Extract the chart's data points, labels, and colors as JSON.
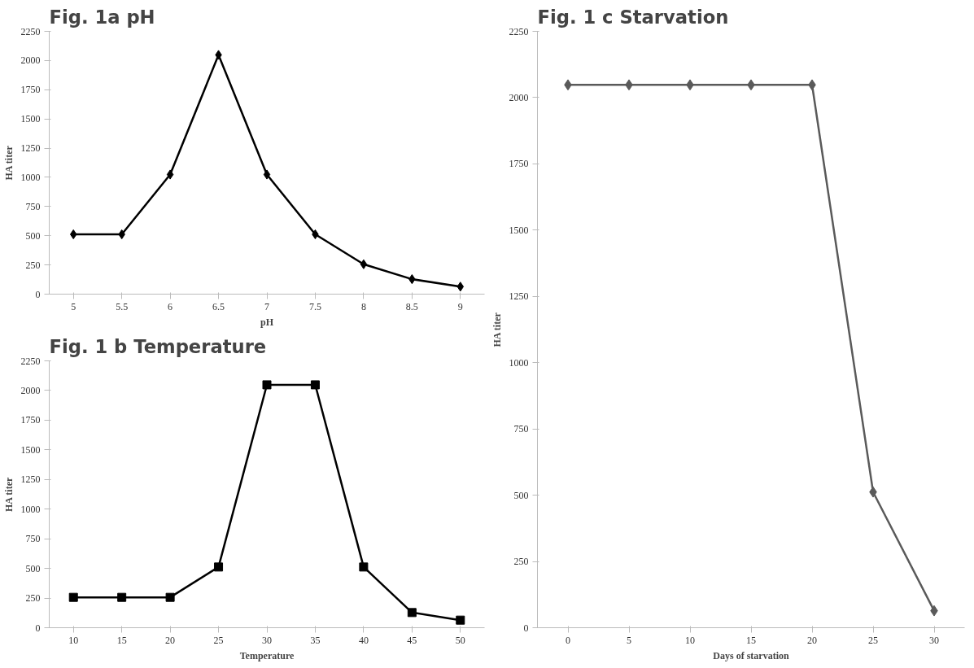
{
  "chart_data": [
    {
      "type": "line",
      "title": "Fig. 1a pH",
      "xlabel": "pH",
      "ylabel": "HA titer",
      "categories": [
        "5",
        "5.5",
        "6",
        "6.5",
        "7",
        "7.5",
        "8",
        "8.5",
        "9"
      ],
      "series": [
        {
          "color": "#000000",
          "values": [
            512,
            512,
            1024,
            2048,
            1024,
            512,
            256,
            128,
            64
          ]
        }
      ],
      "ylim": [
        0,
        2250
      ],
      "yticks": [
        0,
        250,
        500,
        750,
        1000,
        1250,
        1500,
        1750,
        2000,
        2250
      ],
      "marker": "diamond",
      "line_style": "solid",
      "grid": false
    },
    {
      "type": "line",
      "title": "Fig. 1 b  Temperature",
      "xlabel": "Temperature",
      "ylabel": "HA titer",
      "categories": [
        "10",
        "15",
        "20",
        "25",
        "30",
        "35",
        "40",
        "45",
        "50"
      ],
      "series": [
        {
          "color": "#000000",
          "values": [
            256,
            256,
            256,
            512,
            2048,
            2048,
            512,
            128,
            64
          ]
        }
      ],
      "ylim": [
        0,
        2250
      ],
      "yticks": [
        0,
        250,
        500,
        750,
        1000,
        1250,
        1500,
        1750,
        2000,
        2250
      ],
      "marker": "square",
      "line_style": "solid",
      "grid": false
    },
    {
      "type": "line",
      "title": "Fig. 1 c  Starvation",
      "xlabel": "Days of starvation",
      "ylabel": "HA titer",
      "categories": [
        "0",
        "5",
        "10",
        "15",
        "20",
        "25",
        "30"
      ],
      "series": [
        {
          "color": "#5a5a5a",
          "values": [
            2048,
            2048,
            2048,
            2048,
            2048,
            512,
            64
          ]
        }
      ],
      "ylim": [
        0,
        2250
      ],
      "yticks": [
        0,
        250,
        500,
        750,
        1000,
        1250,
        1500,
        1750,
        2000,
        2250
      ],
      "marker": "diamond",
      "line_style": "solid",
      "grid": false
    }
  ]
}
